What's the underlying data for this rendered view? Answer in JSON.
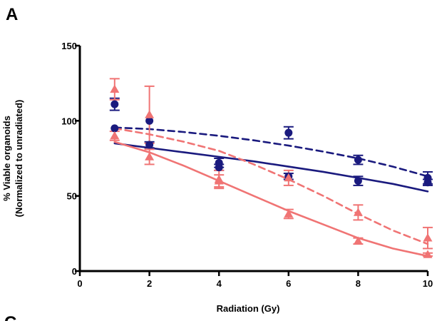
{
  "panel_letter": "A",
  "lower_panel_letter": "C",
  "chart_data": {
    "type": "scatter",
    "title": "",
    "xlabel": "Radiation (Gy)",
    "ylabel_lines": [
      "% Viable organoids",
      "(Normalized to unradiated)"
    ],
    "xlim": [
      0,
      10
    ],
    "ylim": [
      0,
      150
    ],
    "x_ticks": [
      0,
      2,
      4,
      6,
      8,
      10
    ],
    "y_ticks": [
      0,
      50,
      100,
      150
    ],
    "series": [
      {
        "color": "#1a1a7e",
        "marker": "circle",
        "x": [
          1,
          2,
          4,
          6,
          8,
          10
        ],
        "y": [
          111,
          100,
          69,
          92,
          74,
          62
        ],
        "err": [
          4,
          0,
          2,
          4,
          3,
          4
        ],
        "fit": {
          "style": "dashed",
          "x": [
            1,
            2,
            3,
            4,
            5,
            6,
            7,
            8,
            9,
            10
          ],
          "y": [
            95.5,
            94.5,
            92.5,
            90.0,
            87.0,
            83.5,
            79.5,
            75.0,
            69.5,
            63.0
          ]
        }
      },
      {
        "color": "#1a1a7e",
        "marker": "circle",
        "x": [
          1,
          2,
          4,
          6,
          8,
          10
        ],
        "y": [
          95,
          84,
          72,
          63,
          60,
          59
        ],
        "err": [
          0,
          2,
          3,
          2,
          3,
          2
        ],
        "fit": {
          "style": "solid",
          "x": [
            1,
            2,
            3,
            4,
            5,
            6,
            7,
            8,
            9,
            10
          ],
          "y": [
            85,
            82,
            79,
            76,
            73,
            69.5,
            66,
            62,
            58,
            53
          ]
        }
      },
      {
        "color": "#f07474",
        "marker": "triangle",
        "x": [
          1,
          2,
          4,
          6,
          8,
          10
        ],
        "y": [
          121,
          104,
          61,
          62,
          39,
          22
        ],
        "err": [
          7,
          19,
          6,
          5,
          5,
          7
        ],
        "fit": {
          "style": "dashed",
          "x": [
            1,
            2,
            3,
            4,
            5,
            6,
            7,
            8,
            9,
            10
          ],
          "y": [
            95,
            91,
            86,
            80,
            71,
            61,
            50,
            38,
            27,
            18
          ]
        }
      },
      {
        "color": "#f07474",
        "marker": "triangle",
        "x": [
          1,
          2,
          4,
          6,
          8,
          10
        ],
        "y": [
          90,
          76,
          60,
          38,
          20,
          11
        ],
        "err": [
          3,
          5,
          4,
          3,
          2,
          1
        ],
        "fit": {
          "style": "solid",
          "x": [
            1,
            2,
            3,
            4,
            5,
            6,
            7,
            8,
            9,
            10
          ],
          "y": [
            86,
            79,
            70,
            60,
            50,
            40,
            31,
            22,
            15,
            10
          ]
        }
      }
    ]
  }
}
